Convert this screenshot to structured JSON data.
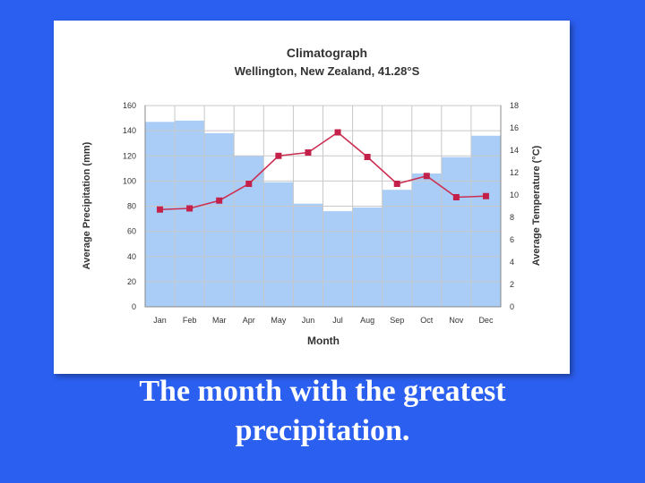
{
  "caption": {
    "line1": "The month with the greatest",
    "line2": "precipitation."
  },
  "chart_data": {
    "type": "bar",
    "title": "Climatograph",
    "subtitle": "Wellington, New Zealand, 41.28°S",
    "xlabel": "Month",
    "ylabel_left": "Average Precipitation (mm)",
    "ylabel_right": "Average Temperature (°C)",
    "categories": [
      "Jan",
      "Feb",
      "Mar",
      "Apr",
      "May",
      "Jun",
      "Jul",
      "Aug",
      "Sep",
      "Oct",
      "Nov",
      "Dec"
    ],
    "ylim_left": [
      0,
      160
    ],
    "ylim_right": [
      0,
      18
    ],
    "yticks_left": [
      0,
      20,
      40,
      60,
      80,
      100,
      120,
      140,
      160
    ],
    "yticks_right": [
      0,
      2,
      4,
      6,
      8,
      10,
      12,
      14,
      16,
      18
    ],
    "grid": true,
    "series": [
      {
        "kind": "bar",
        "axis": "left",
        "values": [
          147,
          148,
          138,
          120,
          99,
          82,
          76,
          79,
          93,
          106,
          119,
          136
        ]
      },
      {
        "kind": "line",
        "axis": "right",
        "values": [
          8.7,
          8.8,
          9.5,
          11.0,
          13.5,
          13.8,
          15.6,
          13.4,
          11.0,
          11.7,
          9.8,
          9.9
        ]
      }
    ],
    "colors": {
      "bar": "#a9cdf7",
      "line": "#cc2f52",
      "marker": "#c4214a"
    }
  }
}
